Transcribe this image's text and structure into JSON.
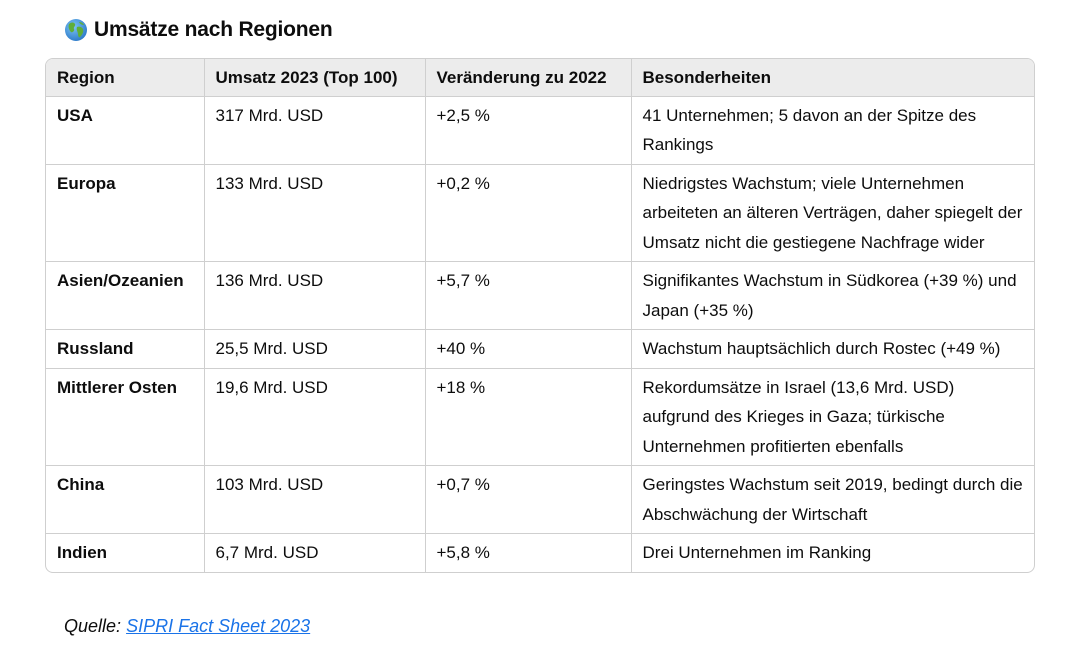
{
  "heading": {
    "icon": "globe-icon",
    "title": "Umsätze nach Regionen"
  },
  "table": {
    "headers": [
      "Region",
      "Umsatz 2023 (Top 100)",
      "Veränderung zu 2022",
      "Besonderheiten"
    ],
    "rows": [
      {
        "region": "USA",
        "umsatz": "317 Mrd. USD",
        "veraenderung": "+2,5 %",
        "besonderheiten": "41 Unternehmen; 5 davon an der Spitze des Rankings"
      },
      {
        "region": "Europa",
        "umsatz": "133 Mrd. USD",
        "veraenderung": "+0,2 %",
        "besonderheiten": "Niedrigstes Wachstum; viele Unternehmen arbeiteten an älteren Verträgen, daher spiegelt der Umsatz nicht die gestiegene Nachfrage wider"
      },
      {
        "region": "Asien/Ozeanien",
        "umsatz": "136 Mrd. USD",
        "veraenderung": "+5,7 %",
        "besonderheiten": "Signifikantes Wachstum in Südkorea (+39 %) und Japan (+35 %)"
      },
      {
        "region": "Russland",
        "umsatz": "25,5 Mrd. USD",
        "veraenderung": "+40 %",
        "besonderheiten": "Wachstum hauptsächlich durch Rostec (+49 %)"
      },
      {
        "region": "Mittlerer Osten",
        "umsatz": "19,6 Mrd. USD",
        "veraenderung": "+18 %",
        "besonderheiten": "Rekordumsätze in Israel (13,6 Mrd. USD) aufgrund des Krieges in Gaza; türkische Unternehmen profitierten ebenfalls"
      },
      {
        "region": "China",
        "umsatz": "103 Mrd. USD",
        "veraenderung": "+0,7 %",
        "besonderheiten": "Geringstes Wachstum seit 2019, bedingt durch die Abschwächung der Wirtschaft"
      },
      {
        "region": "Indien",
        "umsatz": "6,7 Mrd. USD",
        "veraenderung": "+5,8 %",
        "besonderheiten": "Drei Unternehmen im Ranking"
      }
    ]
  },
  "source": {
    "label": "Quelle:",
    "link_text": "SIPRI Fact Sheet 2023"
  },
  "colors": {
    "link": "#1a73e8",
    "header_bg": "#ececec",
    "border": "#cfcfcf"
  }
}
